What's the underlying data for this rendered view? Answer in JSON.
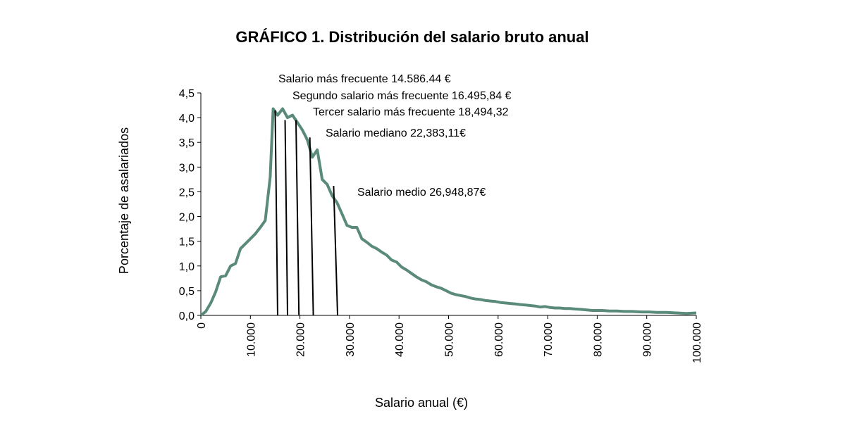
{
  "chart_data": {
    "type": "line",
    "title": "GRÁFICO 1. Distribución del salario bruto anual",
    "xlabel": "Salario anual (€)",
    "ylabel": "Porcentaje de asalariados",
    "xlim": [
      0,
      100000
    ],
    "ylim": [
      0,
      4.5
    ],
    "grid": false,
    "legend": "none",
    "line_color": "#5a8a7a",
    "x_ticks": [
      {
        "value": 0,
        "label": "0"
      },
      {
        "value": 10000,
        "label": "10.000"
      },
      {
        "value": 20000,
        "label": "20.000"
      },
      {
        "value": 30000,
        "label": "30.000"
      },
      {
        "value": 40000,
        "label": "40.000"
      },
      {
        "value": 50000,
        "label": "50.000"
      },
      {
        "value": 60000,
        "label": "60.000"
      },
      {
        "value": 70000,
        "label": "70.000"
      },
      {
        "value": 80000,
        "label": "80.000"
      },
      {
        "value": 90000,
        "label": "90.000"
      },
      {
        "value": 100000,
        "label": "100.000"
      }
    ],
    "y_ticks": [
      {
        "value": 0,
        "label": "0,0"
      },
      {
        "value": 0.5,
        "label": "0,5"
      },
      {
        "value": 1.0,
        "label": "1,0"
      },
      {
        "value": 1.5,
        "label": "1,5"
      },
      {
        "value": 2.0,
        "label": "2,0"
      },
      {
        "value": 2.5,
        "label": "2,5"
      },
      {
        "value": 3.0,
        "label": "3,0"
      },
      {
        "value": 3.5,
        "label": "3,5"
      },
      {
        "value": 4.0,
        "label": "4,0"
      },
      {
        "value": 4.5,
        "label": "4,5"
      }
    ],
    "x": [
      0,
      1000,
      2000,
      3000,
      4000,
      5000,
      6000,
      7000,
      8000,
      9000,
      10000,
      11000,
      12000,
      13000,
      14000,
      14600,
      15500,
      16500,
      17500,
      18500,
      19500,
      20500,
      21500,
      22500,
      23500,
      24500,
      25500,
      26500,
      27500,
      28500,
      29500,
      30500,
      31500,
      32500,
      33500,
      34500,
      35500,
      36500,
      37500,
      38500,
      39500,
      40500,
      41500,
      42500,
      43500,
      44500,
      45500,
      46500,
      47500,
      48500,
      49500,
      50500,
      51500,
      52500,
      53500,
      54500,
      55500,
      56500,
      57500,
      58500,
      59500,
      60500,
      61500,
      62500,
      63500,
      64500,
      65500,
      66500,
      67500,
      68500,
      69500,
      70500,
      71500,
      72500,
      73500,
      74500,
      75500,
      77000,
      79000,
      81000,
      82500,
      84000,
      85500,
      87000,
      89000,
      90500,
      92000,
      94000,
      96000,
      98000,
      100000
    ],
    "y": [
      0.0,
      0.08,
      0.25,
      0.48,
      0.78,
      0.8,
      1.0,
      1.05,
      1.35,
      1.45,
      1.55,
      1.65,
      1.78,
      1.92,
      2.8,
      4.18,
      4.05,
      4.18,
      4.0,
      4.05,
      3.9,
      3.75,
      3.55,
      3.2,
      3.35,
      2.75,
      2.65,
      2.42,
      2.28,
      2.05,
      1.82,
      1.78,
      1.78,
      1.55,
      1.48,
      1.4,
      1.35,
      1.28,
      1.22,
      1.12,
      1.08,
      0.98,
      0.92,
      0.85,
      0.78,
      0.72,
      0.68,
      0.62,
      0.58,
      0.55,
      0.5,
      0.45,
      0.42,
      0.4,
      0.38,
      0.35,
      0.33,
      0.32,
      0.3,
      0.29,
      0.28,
      0.26,
      0.25,
      0.24,
      0.23,
      0.22,
      0.21,
      0.2,
      0.19,
      0.17,
      0.18,
      0.16,
      0.15,
      0.15,
      0.14,
      0.14,
      0.13,
      0.12,
      0.1,
      0.1,
      0.09,
      0.09,
      0.08,
      0.08,
      0.07,
      0.07,
      0.06,
      0.06,
      0.05,
      0.04,
      0.05
    ],
    "annotations": [
      {
        "text": "Salario más frecuente 14.586.44 €",
        "x": 15000,
        "y": 4.15,
        "line_to_x": 15500
      },
      {
        "text": "Segundo salario más frecuente 16.495,84 €",
        "x": 17000,
        "y": 3.95,
        "line_to_x": 17500
      },
      {
        "text": "Tercer salario más frecuente 18,494,32",
        "x": 19200,
        "y": 3.95,
        "line_to_x": 19800
      },
      {
        "text": "Salario mediano 22,383,11€",
        "x": 22000,
        "y": 3.6,
        "line_to_x": 22700
      },
      {
        "text": "Salario medio 26,948,87€",
        "x": 26800,
        "y": 2.62,
        "line_to_x": 27600
      }
    ]
  }
}
